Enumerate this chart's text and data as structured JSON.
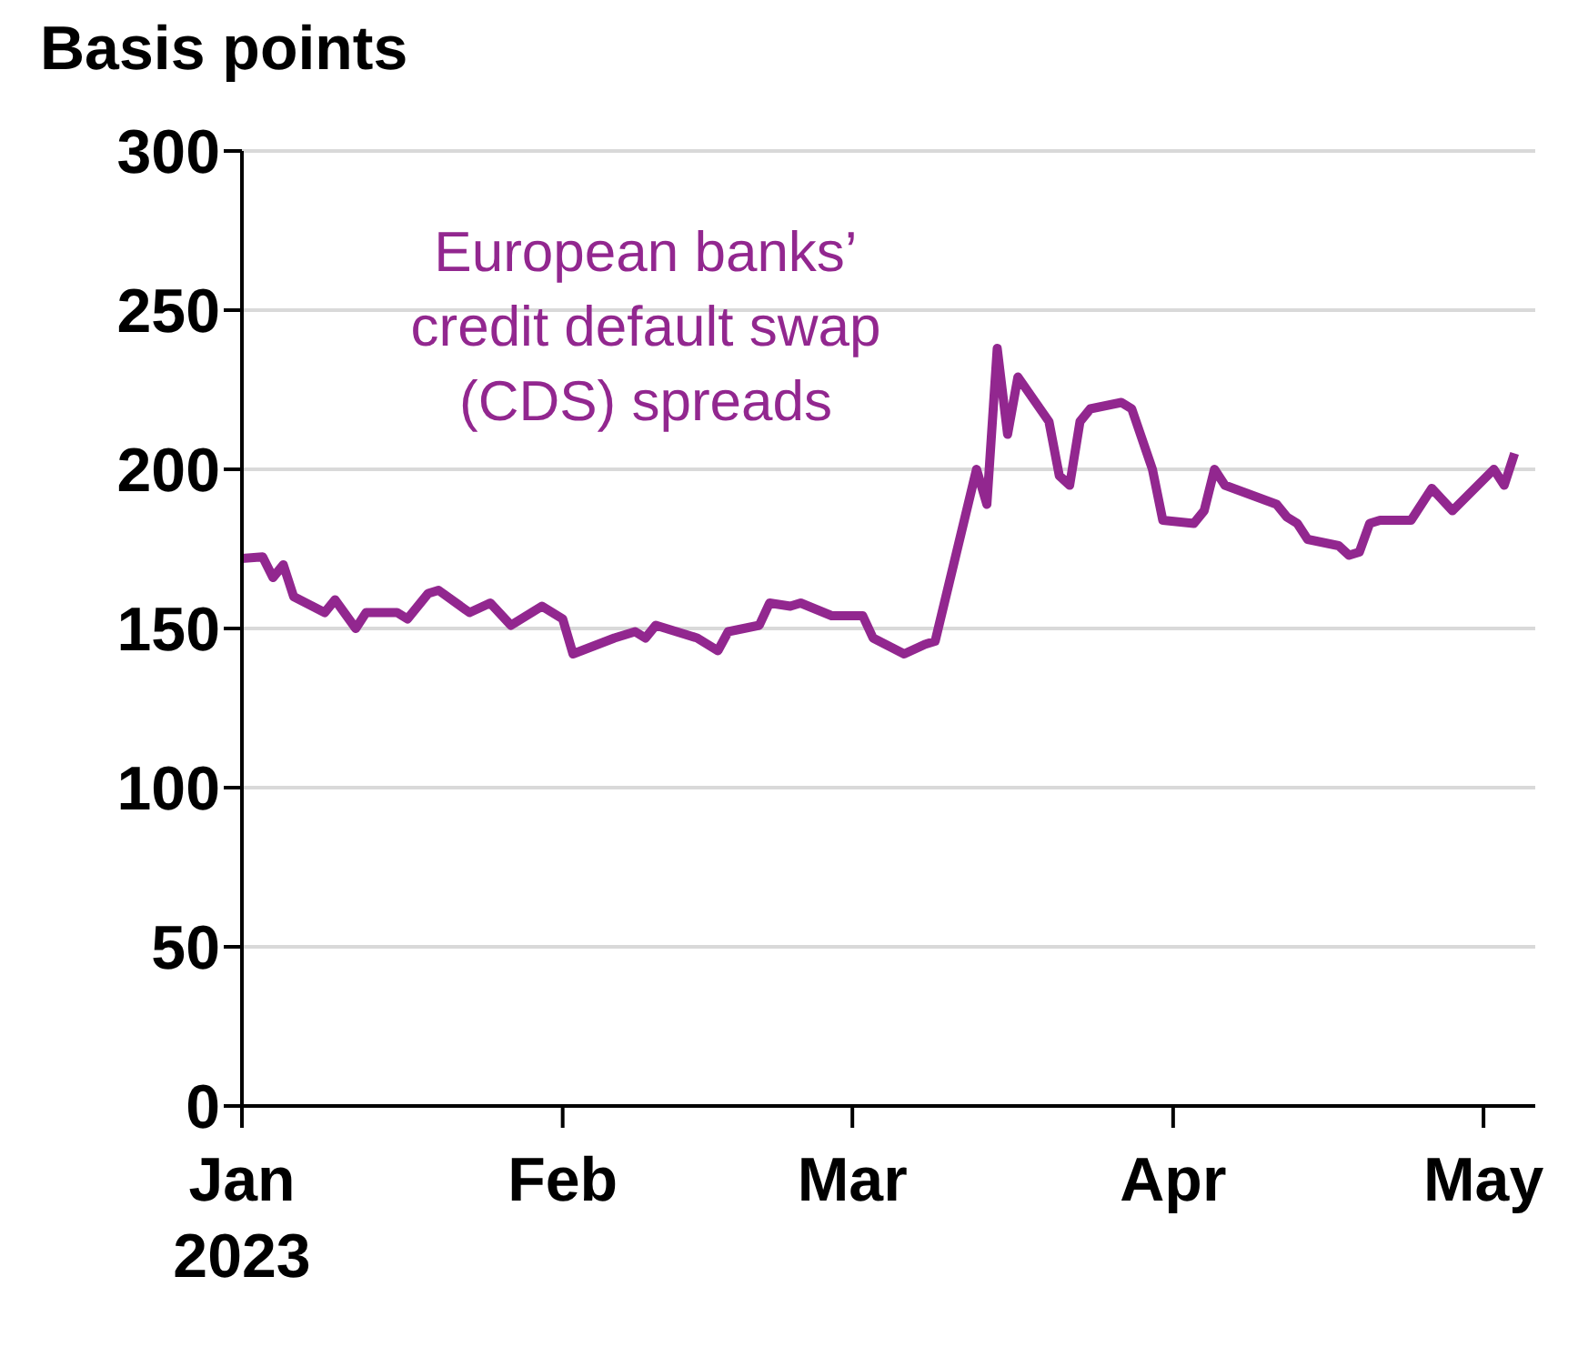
{
  "chart_data": {
    "type": "line",
    "ylabel": "Basis points",
    "x": [
      "2023-01-01",
      "2023-01-03",
      "2023-01-04",
      "2023-01-05",
      "2023-01-06",
      "2023-01-09",
      "2023-01-10",
      "2023-01-12",
      "2023-01-13",
      "2023-01-16",
      "2023-01-17",
      "2023-01-19",
      "2023-01-20",
      "2023-01-23",
      "2023-01-25",
      "2023-01-27",
      "2023-01-30",
      "2023-02-01",
      "2023-02-02",
      "2023-02-06",
      "2023-02-08",
      "2023-02-09",
      "2023-02-10",
      "2023-02-14",
      "2023-02-16",
      "2023-02-17",
      "2023-02-20",
      "2023-02-21",
      "2023-02-23",
      "2023-02-24",
      "2023-02-27",
      "2023-03-01",
      "2023-03-02",
      "2023-03-03",
      "2023-03-06",
      "2023-03-08",
      "2023-03-09",
      "2023-03-13",
      "2023-03-14",
      "2023-03-15",
      "2023-03-16",
      "2023-03-17",
      "2023-03-20",
      "2023-03-21",
      "2023-03-22",
      "2023-03-23",
      "2023-03-24",
      "2023-03-27",
      "2023-03-28",
      "2023-03-30",
      "2023-03-31",
      "2023-04-03",
      "2023-04-04",
      "2023-04-05",
      "2023-04-06",
      "2023-04-11",
      "2023-04-12",
      "2023-04-13",
      "2023-04-14",
      "2023-04-17",
      "2023-04-18",
      "2023-04-19",
      "2023-04-20",
      "2023-04-21",
      "2023-04-24",
      "2023-04-26",
      "2023-04-28",
      "2023-05-02",
      "2023-05-03",
      "2023-05-04"
    ],
    "series": [
      {
        "name": "European banks’ credit default swap (CDS) spreads",
        "color": "#92278f",
        "values": [
          172,
          172.5,
          166,
          170,
          160,
          155,
          159,
          150,
          155,
          155,
          153,
          161,
          162,
          155,
          158,
          151,
          157,
          153,
          142,
          147,
          149,
          147,
          151,
          147,
          143,
          149,
          151,
          158,
          157,
          158,
          154,
          154,
          154,
          147,
          142,
          145,
          146,
          200,
          189,
          238,
          211,
          229,
          215,
          198,
          195,
          215,
          219,
          221,
          219,
          200,
          184,
          183,
          187,
          200,
          195,
          189,
          185,
          183,
          178,
          176,
          173,
          174,
          183,
          184,
          184,
          194,
          187,
          200,
          195,
          205
        ]
      }
    ],
    "xlim": [
      "2023-01-01",
      "2023-05-06"
    ],
    "xticks": [
      {
        "value": "2023-01-01",
        "label": "Jan\n2023"
      },
      {
        "value": "2023-02-01",
        "label": "Feb"
      },
      {
        "value": "2023-03-01",
        "label": "Mar"
      },
      {
        "value": "2023-04-01",
        "label": "Apr"
      },
      {
        "value": "2023-05-01",
        "label": "May"
      }
    ],
    "ylim": [
      0,
      300
    ],
    "yticks": [
      0,
      50,
      100,
      150,
      200,
      250,
      300
    ],
    "grid": "y",
    "marker": "none",
    "line_style": "solid"
  }
}
